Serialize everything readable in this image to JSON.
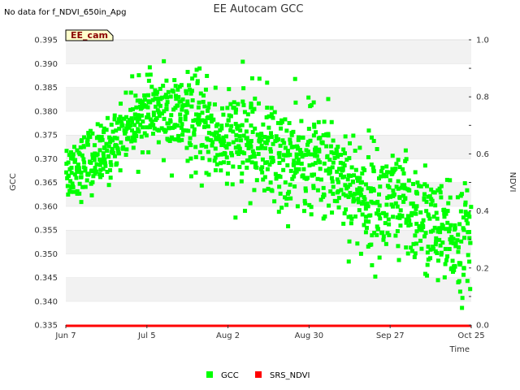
{
  "chart_data": {
    "type": "scatter",
    "title": "EE Autocam GCC",
    "note": "No data for f_NDVI_650in_Apg",
    "site_tag": "EE_cam",
    "xlabel": "Time",
    "ylabel": "GCC",
    "y2label": "NDVI",
    "xlim": [
      "2024-06-07",
      "2024-10-25"
    ],
    "ylim": [
      0.335,
      0.395
    ],
    "y2lim": [
      0.0,
      1.0
    ],
    "x_ticks": [
      {
        "date": "2024-06-07",
        "label": "Jun 7"
      },
      {
        "date": "2024-07-05",
        "label": "Jul 5"
      },
      {
        "date": "2024-08-02",
        "label": "Aug 2"
      },
      {
        "date": "2024-08-30",
        "label": "Aug 30"
      },
      {
        "date": "2024-09-27",
        "label": "Sep 27"
      },
      {
        "date": "2024-10-25",
        "label": "Oct 25"
      }
    ],
    "y_ticks": [
      "0.335",
      "0.340",
      "0.345",
      "0.350",
      "0.355",
      "0.360",
      "0.365",
      "0.370",
      "0.375",
      "0.380",
      "0.385",
      "0.390",
      "0.395"
    ],
    "y2_ticks": [
      "0.0",
      "0.2",
      "0.4",
      "0.6",
      "0.8",
      "1.0"
    ],
    "grid": "horizontal bands",
    "legend_position": "bottom",
    "series": [
      {
        "name": "GCC",
        "color": "#00ff00",
        "marker": "square",
        "axis": "left",
        "trend": [
          {
            "date": "2024-06-07",
            "center": 0.3675,
            "spread": 0.006
          },
          {
            "date": "2024-06-21",
            "center": 0.371,
            "spread": 0.006
          },
          {
            "date": "2024-06-28",
            "center": 0.377,
            "spread": 0.006
          },
          {
            "date": "2024-07-05",
            "center": 0.38,
            "spread": 0.006
          },
          {
            "date": "2024-07-14",
            "center": 0.379,
            "spread": 0.008
          },
          {
            "date": "2024-07-24",
            "center": 0.377,
            "spread": 0.009
          },
          {
            "date": "2024-08-02",
            "center": 0.373,
            "spread": 0.01
          },
          {
            "date": "2024-08-12",
            "center": 0.374,
            "spread": 0.01
          },
          {
            "date": "2024-08-22",
            "center": 0.369,
            "spread": 0.01
          },
          {
            "date": "2024-08-30",
            "center": 0.37,
            "spread": 0.01
          },
          {
            "date": "2024-09-08",
            "center": 0.368,
            "spread": 0.01
          },
          {
            "date": "2024-09-17",
            "center": 0.362,
            "spread": 0.011
          },
          {
            "date": "2024-09-27",
            "center": 0.36,
            "spread": 0.011
          },
          {
            "date": "2024-10-07",
            "center": 0.358,
            "spread": 0.01
          },
          {
            "date": "2024-10-16",
            "center": 0.353,
            "spread": 0.01
          },
          {
            "date": "2024-10-25",
            "center": 0.353,
            "spread": 0.01
          }
        ]
      },
      {
        "name": "SRS_NDVI",
        "color": "#ff0000",
        "marker": "square",
        "axis": "right",
        "x": [
          "2024-06-07",
          "2024-10-25"
        ],
        "y": [
          0.0,
          0.0
        ]
      }
    ]
  }
}
